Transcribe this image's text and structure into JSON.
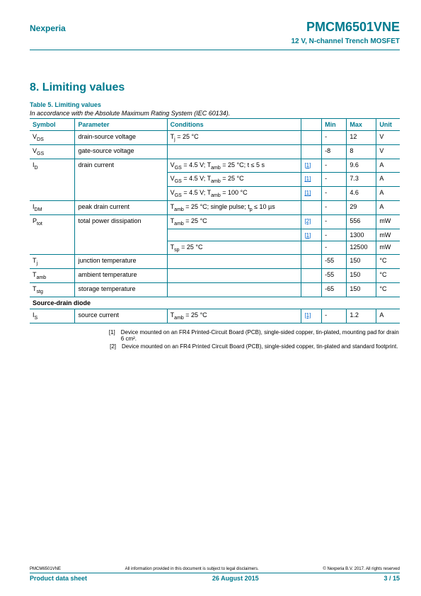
{
  "header": {
    "company": "Nexperia",
    "part_number": "PMCM6501VNE",
    "subtitle": "12 V, N-channel Trench MOSFET"
  },
  "section": {
    "title": "8.   Limiting values",
    "table_caption": "Table 5.    Limiting values",
    "table_note": "In accordance with the Absolute Maximum Rating System (IEC 60134)."
  },
  "columns": [
    "Symbol",
    "Parameter",
    "Conditions",
    "",
    "Min",
    "Max",
    "Unit"
  ],
  "rows": [
    {
      "symbol": "V<sub>DS</sub>",
      "param": "drain-source voltage",
      "cond": "T<sub>j</sub> = 25 °C",
      "ref": "",
      "min": "-",
      "max": "12",
      "unit": "V"
    },
    {
      "symbol": "V<sub>GS</sub>",
      "param": "gate-source voltage",
      "cond": "",
      "ref": "",
      "min": "-8",
      "max": "8",
      "unit": "V"
    },
    {
      "symbol": "I<sub>D</sub>",
      "param": "drain current",
      "cond": "V<sub>GS</sub> = 4.5 V; T<sub>amb</sub> = 25 °C; t ≤ 5 s",
      "ref": "[1]",
      "min": "-",
      "max": "9.6",
      "unit": "A",
      "groupStart": true
    },
    {
      "symbol": "",
      "param": "",
      "cond": "V<sub>GS</sub> = 4.5 V; T<sub>amb</sub> = 25 °C",
      "ref": "[1]",
      "min": "-",
      "max": "7.3",
      "unit": "A",
      "groupMid": true
    },
    {
      "symbol": "",
      "param": "",
      "cond": "V<sub>GS</sub> = 4.5 V; T<sub>amb</sub> = 100 °C",
      "ref": "[1]",
      "min": "-",
      "max": "4.6",
      "unit": "A",
      "groupEnd": true
    },
    {
      "symbol": "I<sub>DM</sub>",
      "param": "peak drain current",
      "cond": "T<sub>amb</sub> = 25 °C; single pulse; t<sub>p</sub> ≤ 10 µs",
      "ref": "",
      "min": "-",
      "max": "29",
      "unit": "A"
    },
    {
      "symbol": "P<sub>tot</sub>",
      "param": "total power dissipation",
      "cond": "T<sub>amb</sub> = 25 °C",
      "ref": "[2]",
      "min": "-",
      "max": "556",
      "unit": "mW",
      "groupStart": true
    },
    {
      "symbol": "",
      "param": "",
      "cond": "",
      "ref": "[1]",
      "min": "-",
      "max": "1300",
      "unit": "mW",
      "groupMid": true
    },
    {
      "symbol": "",
      "param": "",
      "cond": "T<sub>sp</sub> = 25 °C",
      "ref": "",
      "min": "-",
      "max": "12500",
      "unit": "mW",
      "groupEnd": true
    },
    {
      "symbol": "T<sub>j</sub>",
      "param": "junction temperature",
      "cond": "",
      "ref": "",
      "min": "-55",
      "max": "150",
      "unit": "°C"
    },
    {
      "symbol": "T<sub>amb</sub>",
      "param": "ambient temperature",
      "cond": "",
      "ref": "",
      "min": "-55",
      "max": "150",
      "unit": "°C"
    },
    {
      "symbol": "T<sub>stg</sub>",
      "param": "storage temperature",
      "cond": "",
      "ref": "",
      "min": "-65",
      "max": "150",
      "unit": "°C"
    },
    {
      "section": "Source-drain diode"
    },
    {
      "symbol": "I<sub>S</sub>",
      "param": "source current",
      "cond": "T<sub>amb</sub> = 25 °C",
      "ref": "[1]",
      "min": "-",
      "max": "1.2",
      "unit": "A"
    }
  ],
  "footnotes": [
    {
      "num": "[1]",
      "text": "Device mounted on an FR4 Printed-Circuit Board (PCB), single-sided copper, tin-plated, mounting pad for drain 6 cm²."
    },
    {
      "num": "[2]",
      "text": "Device mounted on an FR4 Printed Circuit Board (PCB), single-sided copper, tin-plated and standard footprint."
    }
  ],
  "footer": {
    "product_code": "PMCM6501VNE",
    "disclaimer": "All information provided in this document is subject to legal disclaimers.",
    "copyright": "© Nexperia B.V. 2017. All rights reserved",
    "doc_type": "Product data sheet",
    "date": "26 August 2015",
    "page": "3 / 15"
  }
}
